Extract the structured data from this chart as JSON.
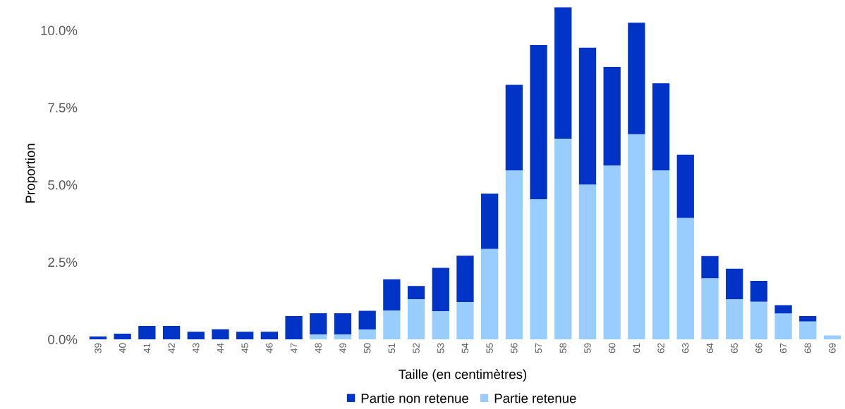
{
  "chart_data": {
    "type": "bar",
    "stacked": true,
    "xlabel": "Taille (en centimètres)",
    "ylabel": "Proportion",
    "categories": [
      "39",
      "40",
      "41",
      "42",
      "43",
      "44",
      "45",
      "46",
      "47",
      "48",
      "49",
      "50",
      "51",
      "52",
      "53",
      "54",
      "55",
      "56",
      "57",
      "58",
      "59",
      "60",
      "61",
      "62",
      "63",
      "64",
      "65",
      "66",
      "67",
      "68",
      "69"
    ],
    "series": [
      {
        "name": "Partie retenue",
        "color": "#99ccff",
        "values": [
          0,
          0,
          0,
          0,
          0,
          0,
          0,
          0,
          0,
          0.16,
          0.16,
          0.32,
          0.94,
          1.3,
          0.92,
          1.21,
          2.93,
          5.47,
          4.54,
          6.49,
          5.02,
          5.63,
          6.64,
          5.47,
          3.93,
          1.98,
          1.3,
          1.22,
          0.84,
          0.58,
          0.13
        ]
      },
      {
        "name": "Partie non retenue",
        "color": "#0033c6",
        "values": [
          0.1,
          0.19,
          0.44,
          0.44,
          0.25,
          0.33,
          0.25,
          0.25,
          0.76,
          0.69,
          0.69,
          0.61,
          1.01,
          0.43,
          1.4,
          1.5,
          1.79,
          2.77,
          4.99,
          4.26,
          4.42,
          3.19,
          3.61,
          2.82,
          2.05,
          0.72,
          0.99,
          0.68,
          0.27,
          0.18,
          0
        ]
      }
    ],
    "ylim": [
      0,
      10.75
    ],
    "yticks": [
      {
        "value": 0,
        "label": "0.0%"
      },
      {
        "value": 2.5,
        "label": "2.5%"
      },
      {
        "value": 5,
        "label": "5.0%"
      },
      {
        "value": 7.5,
        "label": "7.5%"
      },
      {
        "value": 10,
        "label": "10.0%"
      }
    ],
    "legend": "bottom"
  }
}
